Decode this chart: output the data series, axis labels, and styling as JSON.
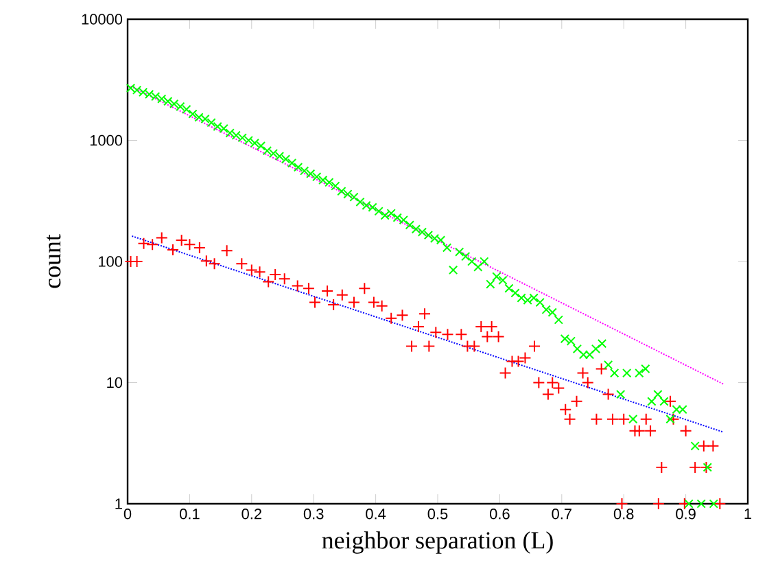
{
  "chart_data": {
    "type": "scatter",
    "xlabel": "neighbor separation (L)",
    "ylabel": "count",
    "log": "y",
    "xlim": [
      0,
      1
    ],
    "ylim": [
      1,
      10000
    ],
    "xticks": [
      0,
      0.1,
      0.2,
      0.3,
      0.4,
      0.5,
      0.6,
      0.7,
      0.8,
      0.9,
      1
    ],
    "yticks": [
      1,
      10,
      100,
      1000,
      10000
    ],
    "series": [
      {
        "color": "#ff0000",
        "marker": "plus",
        "x": [
          0.005,
          0.015,
          0.026,
          0.04,
          0.055,
          0.073,
          0.087,
          0.1,
          0.116,
          0.127,
          0.14,
          0.16,
          0.184,
          0.2,
          0.213,
          0.227,
          0.238,
          0.253,
          0.274,
          0.292,
          0.302,
          0.322,
          0.332,
          0.346,
          0.365,
          0.382,
          0.397,
          0.41,
          0.425,
          0.443,
          0.458,
          0.469,
          0.479,
          0.486,
          0.497,
          0.516,
          0.538,
          0.548,
          0.559,
          0.57,
          0.58,
          0.587,
          0.598,
          0.609,
          0.62,
          0.63,
          0.641,
          0.656,
          0.663,
          0.678,
          0.685,
          0.695,
          0.706,
          0.713,
          0.724,
          0.734,
          0.742,
          0.756,
          0.764,
          0.775,
          0.782,
          0.797,
          0.8,
          0.818,
          0.825,
          0.836,
          0.843,
          0.856,
          0.861,
          0.875,
          0.88,
          0.898,
          0.9,
          0.915,
          0.929,
          0.933,
          0.944,
          0.955
        ],
        "values": [
          100,
          100,
          141,
          138,
          157,
          125,
          150,
          138,
          130,
          101,
          96,
          123,
          96,
          85,
          82,
          68,
          78,
          72,
          63,
          60,
          46,
          57,
          44,
          53,
          46,
          60,
          46,
          43,
          34,
          36,
          20,
          29,
          37,
          20,
          26,
          25,
          25,
          20,
          20,
          29,
          24,
          29,
          24,
          12,
          15,
          15,
          16,
          20,
          10,
          8,
          10,
          9,
          6,
          5,
          7,
          12,
          10,
          5,
          13,
          8,
          5,
          1,
          5,
          4,
          4,
          5,
          4,
          1,
          2,
          7,
          5,
          1,
          4,
          2,
          3,
          2,
          3,
          1
        ]
      },
      {
        "color": "#00ff00",
        "marker": "cross",
        "x": [
          0.005,
          0.015,
          0.025,
          0.035,
          0.045,
          0.055,
          0.065,
          0.075,
          0.085,
          0.095,
          0.105,
          0.115,
          0.125,
          0.135,
          0.145,
          0.155,
          0.165,
          0.175,
          0.185,
          0.195,
          0.205,
          0.215,
          0.225,
          0.235,
          0.245,
          0.255,
          0.265,
          0.275,
          0.285,
          0.295,
          0.305,
          0.315,
          0.325,
          0.335,
          0.345,
          0.355,
          0.365,
          0.375,
          0.385,
          0.395,
          0.405,
          0.415,
          0.425,
          0.435,
          0.445,
          0.455,
          0.465,
          0.475,
          0.485,
          0.495,
          0.505,
          0.515,
          0.525,
          0.535,
          0.545,
          0.555,
          0.565,
          0.575,
          0.585,
          0.595,
          0.605,
          0.615,
          0.625,
          0.635,
          0.645,
          0.655,
          0.665,
          0.675,
          0.685,
          0.695,
          0.705,
          0.715,
          0.725,
          0.735,
          0.745,
          0.755,
          0.765,
          0.775,
          0.785,
          0.795,
          0.805,
          0.815,
          0.825,
          0.835,
          0.845,
          0.855,
          0.865,
          0.875,
          0.885,
          0.895,
          0.905,
          0.915,
          0.925,
          0.935,
          0.945
        ],
        "values": [
          2700,
          2600,
          2500,
          2400,
          2300,
          2200,
          2100,
          2000,
          1900,
          1800,
          1650,
          1550,
          1500,
          1400,
          1300,
          1250,
          1150,
          1100,
          1050,
          1000,
          950,
          900,
          820,
          780,
          740,
          700,
          650,
          600,
          560,
          530,
          500,
          470,
          450,
          420,
          380,
          360,
          340,
          310,
          290,
          280,
          260,
          240,
          250,
          230,
          220,
          200,
          185,
          175,
          165,
          155,
          150,
          130,
          85,
          120,
          110,
          100,
          90,
          100,
          65,
          75,
          70,
          60,
          55,
          50,
          48,
          50,
          46,
          40,
          38,
          33,
          23,
          22,
          19,
          17,
          17,
          19,
          21,
          14,
          12,
          8,
          12,
          5,
          12,
          13,
          7,
          8,
          7,
          5,
          6,
          6,
          1,
          3,
          1,
          2,
          1
        ]
      },
      {
        "type": "line",
        "color": "#0000ff",
        "line_style": "dotted",
        "marker": "none",
        "x": [
          0.007,
          0.961
        ],
        "values": [
          162,
          3.9
        ]
      },
      {
        "type": "line",
        "color": "#ff00ff",
        "line_style": "dotted",
        "marker": "none",
        "x": [
          0.005,
          0.961
        ],
        "values": [
          2800,
          9.7
        ]
      }
    ]
  }
}
